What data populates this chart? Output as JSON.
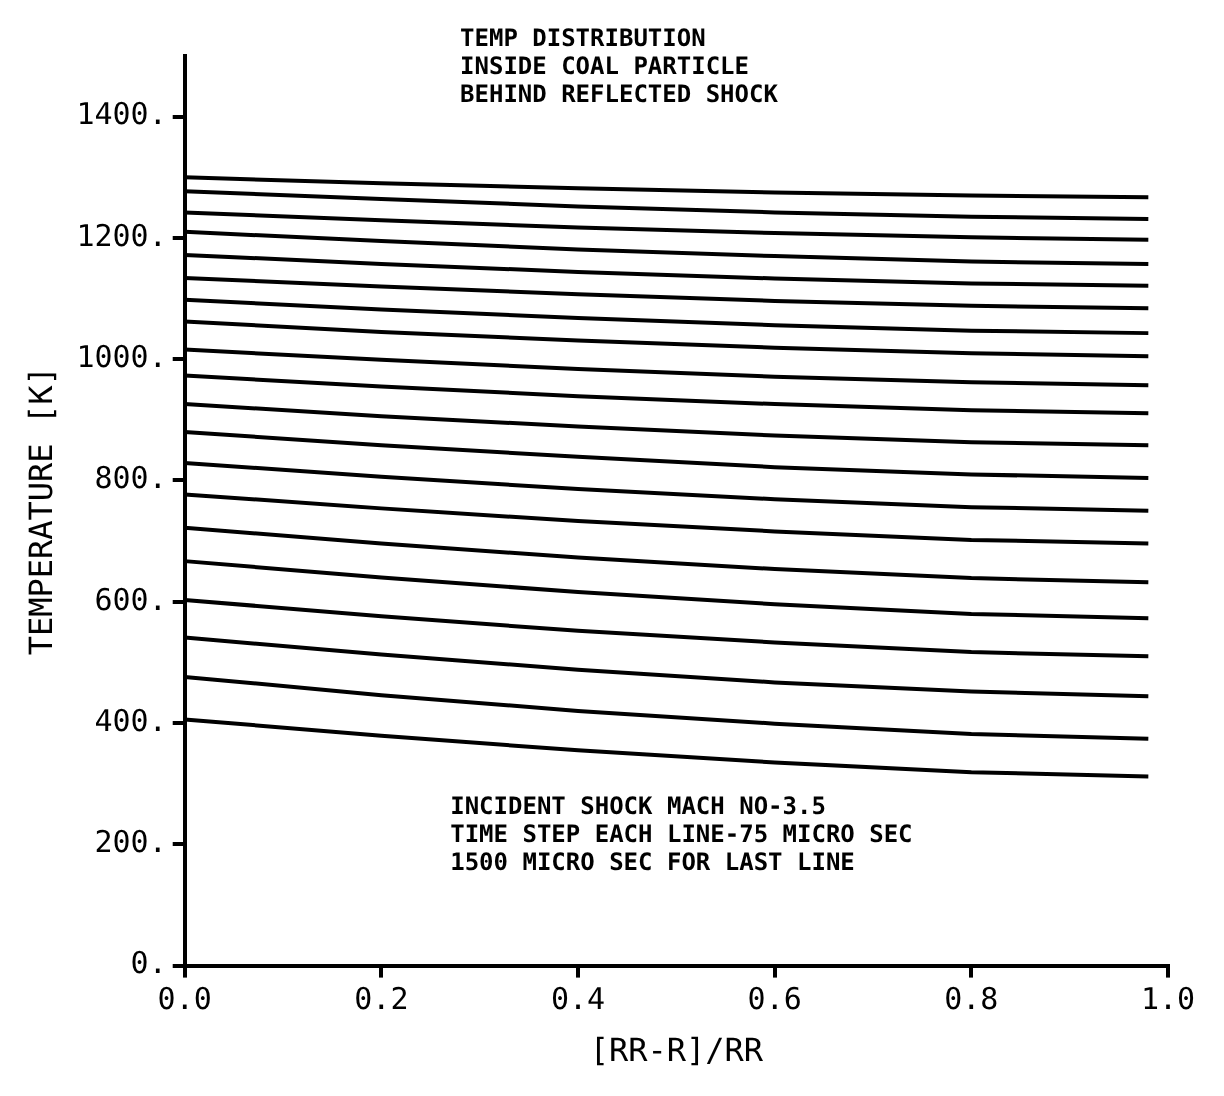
{
  "chart_data": {
    "type": "line",
    "title": "TEMP DISTRIBUTION\nINSIDE COAL PARTICLE\nBEHIND REFLECTED SHOCK",
    "xlabel": "[RR-R]/RR",
    "ylabel": "TEMPERATURE [K]",
    "annotations": [
      "INCIDENT SHOCK MACH NO-3.5\nTIME STEP EACH LINE-75 MICRO SEC\n1500 MICRO SEC FOR LAST LINE"
    ],
    "x": [
      0,
      0.2,
      0.4,
      0.6,
      0.8,
      0.98
    ],
    "series": [
      {
        "color": "#000000",
        "values": [
          1300,
          1290,
          1282,
          1275,
          1270,
          1267
        ]
      },
      {
        "color": "#000000",
        "values": [
          1277,
          1264,
          1252,
          1242,
          1235,
          1231
        ]
      },
      {
        "color": "#000000",
        "values": [
          1242,
          1229,
          1217,
          1208,
          1201,
          1197
        ]
      },
      {
        "color": "#000000",
        "values": [
          1210,
          1195,
          1181,
          1170,
          1161,
          1157
        ]
      },
      {
        "color": "#000000",
        "values": [
          1172,
          1157,
          1144,
          1133,
          1125,
          1121
        ]
      },
      {
        "color": "#000000",
        "values": [
          1134,
          1120,
          1107,
          1096,
          1088,
          1084
        ]
      },
      {
        "color": "#000000",
        "values": [
          1098,
          1082,
          1068,
          1056,
          1047,
          1043
        ]
      },
      {
        "color": "#000000",
        "values": [
          1062,
          1045,
          1031,
          1019,
          1010,
          1005
        ]
      },
      {
        "color": "#000000",
        "values": [
          1016,
          999,
          984,
          971,
          962,
          957
        ]
      },
      {
        "color": "#000000",
        "values": [
          973,
          955,
          939,
          926,
          916,
          911
        ]
      },
      {
        "color": "#000000",
        "values": [
          926,
          906,
          889,
          874,
          863,
          858
        ]
      },
      {
        "color": "#000000",
        "values": [
          880,
          858,
          839,
          822,
          810,
          804
        ]
      },
      {
        "color": "#000000",
        "values": [
          829,
          806,
          786,
          769,
          756,
          750
        ]
      },
      {
        "color": "#000000",
        "values": [
          777,
          754,
          733,
          716,
          702,
          696
        ]
      },
      {
        "color": "#000000",
        "values": [
          722,
          696,
          673,
          654,
          639,
          632
        ]
      },
      {
        "color": "#000000",
        "values": [
          667,
          640,
          616,
          596,
          580,
          573
        ]
      },
      {
        "color": "#000000",
        "values": [
          603,
          576,
          552,
          533,
          517,
          510
        ]
      },
      {
        "color": "#000000",
        "values": [
          541,
          513,
          488,
          467,
          452,
          444
        ]
      },
      {
        "color": "#000000",
        "values": [
          476,
          446,
          420,
          399,
          382,
          374
        ]
      },
      {
        "color": "#000000",
        "values": [
          406,
          379,
          355,
          335,
          319,
          312
        ]
      }
    ],
    "xlim": [
      0,
      1
    ],
    "xticks": [
      {
        "value": 0,
        "label": "0.0"
      },
      {
        "value": 0.2,
        "label": "0.2"
      },
      {
        "value": 0.4,
        "label": "0.4"
      },
      {
        "value": 0.6,
        "label": "0.6"
      },
      {
        "value": 0.8,
        "label": "0.8"
      },
      {
        "value": 1,
        "label": "1.0"
      }
    ],
    "ylim": [
      0,
      1500
    ],
    "yticks": [
      {
        "value": 0,
        "label": "0."
      },
      {
        "value": 200,
        "label": "200."
      },
      {
        "value": 400,
        "label": "400."
      },
      {
        "value": 600,
        "label": "600."
      },
      {
        "value": 800,
        "label": "800."
      },
      {
        "value": 1000,
        "label": "1000."
      },
      {
        "value": 1200,
        "label": "1200."
      },
      {
        "value": 1400,
        "label": "1400."
      }
    ],
    "legend": false,
    "marker": "none",
    "line_style": "solid"
  }
}
